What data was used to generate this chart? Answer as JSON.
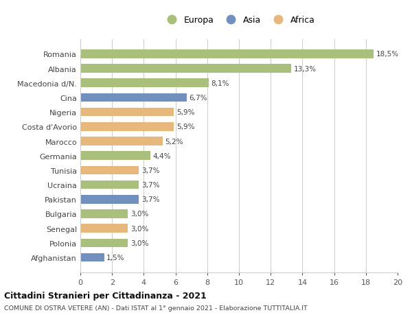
{
  "countries": [
    "Romania",
    "Albania",
    "Macedonia d/N.",
    "Cina",
    "Nigeria",
    "Costa d'Avorio",
    "Marocco",
    "Germania",
    "Tunisia",
    "Ucraina",
    "Pakistan",
    "Bulgaria",
    "Senegal",
    "Polonia",
    "Afghanistan"
  ],
  "values": [
    18.5,
    13.3,
    8.1,
    6.7,
    5.9,
    5.9,
    5.2,
    4.4,
    3.7,
    3.7,
    3.7,
    3.0,
    3.0,
    3.0,
    1.5
  ],
  "labels": [
    "18,5%",
    "13,3%",
    "8,1%",
    "6,7%",
    "5,9%",
    "5,9%",
    "5,2%",
    "4,4%",
    "3,7%",
    "3,7%",
    "3,7%",
    "3,0%",
    "3,0%",
    "3,0%",
    "1,5%"
  ],
  "continents": [
    "Europa",
    "Europa",
    "Europa",
    "Asia",
    "Africa",
    "Africa",
    "Africa",
    "Europa",
    "Africa",
    "Europa",
    "Asia",
    "Europa",
    "Africa",
    "Europa",
    "Asia"
  ],
  "colors": {
    "Europa": "#a8c07a",
    "Asia": "#7090c0",
    "Africa": "#e8b87a"
  },
  "legend_labels": [
    "Europa",
    "Asia",
    "Africa"
  ],
  "xlim": [
    0,
    20
  ],
  "xticks": [
    0,
    2,
    4,
    6,
    8,
    10,
    12,
    14,
    16,
    18,
    20
  ],
  "title": "Cittadini Stranieri per Cittadinanza - 2021",
  "subtitle": "COMUNE DI OSTRA VETERE (AN) - Dati ISTAT al 1° gennaio 2021 - Elaborazione TUTTITALIA.IT",
  "bg_color": "#ffffff",
  "grid_color": "#cccccc"
}
